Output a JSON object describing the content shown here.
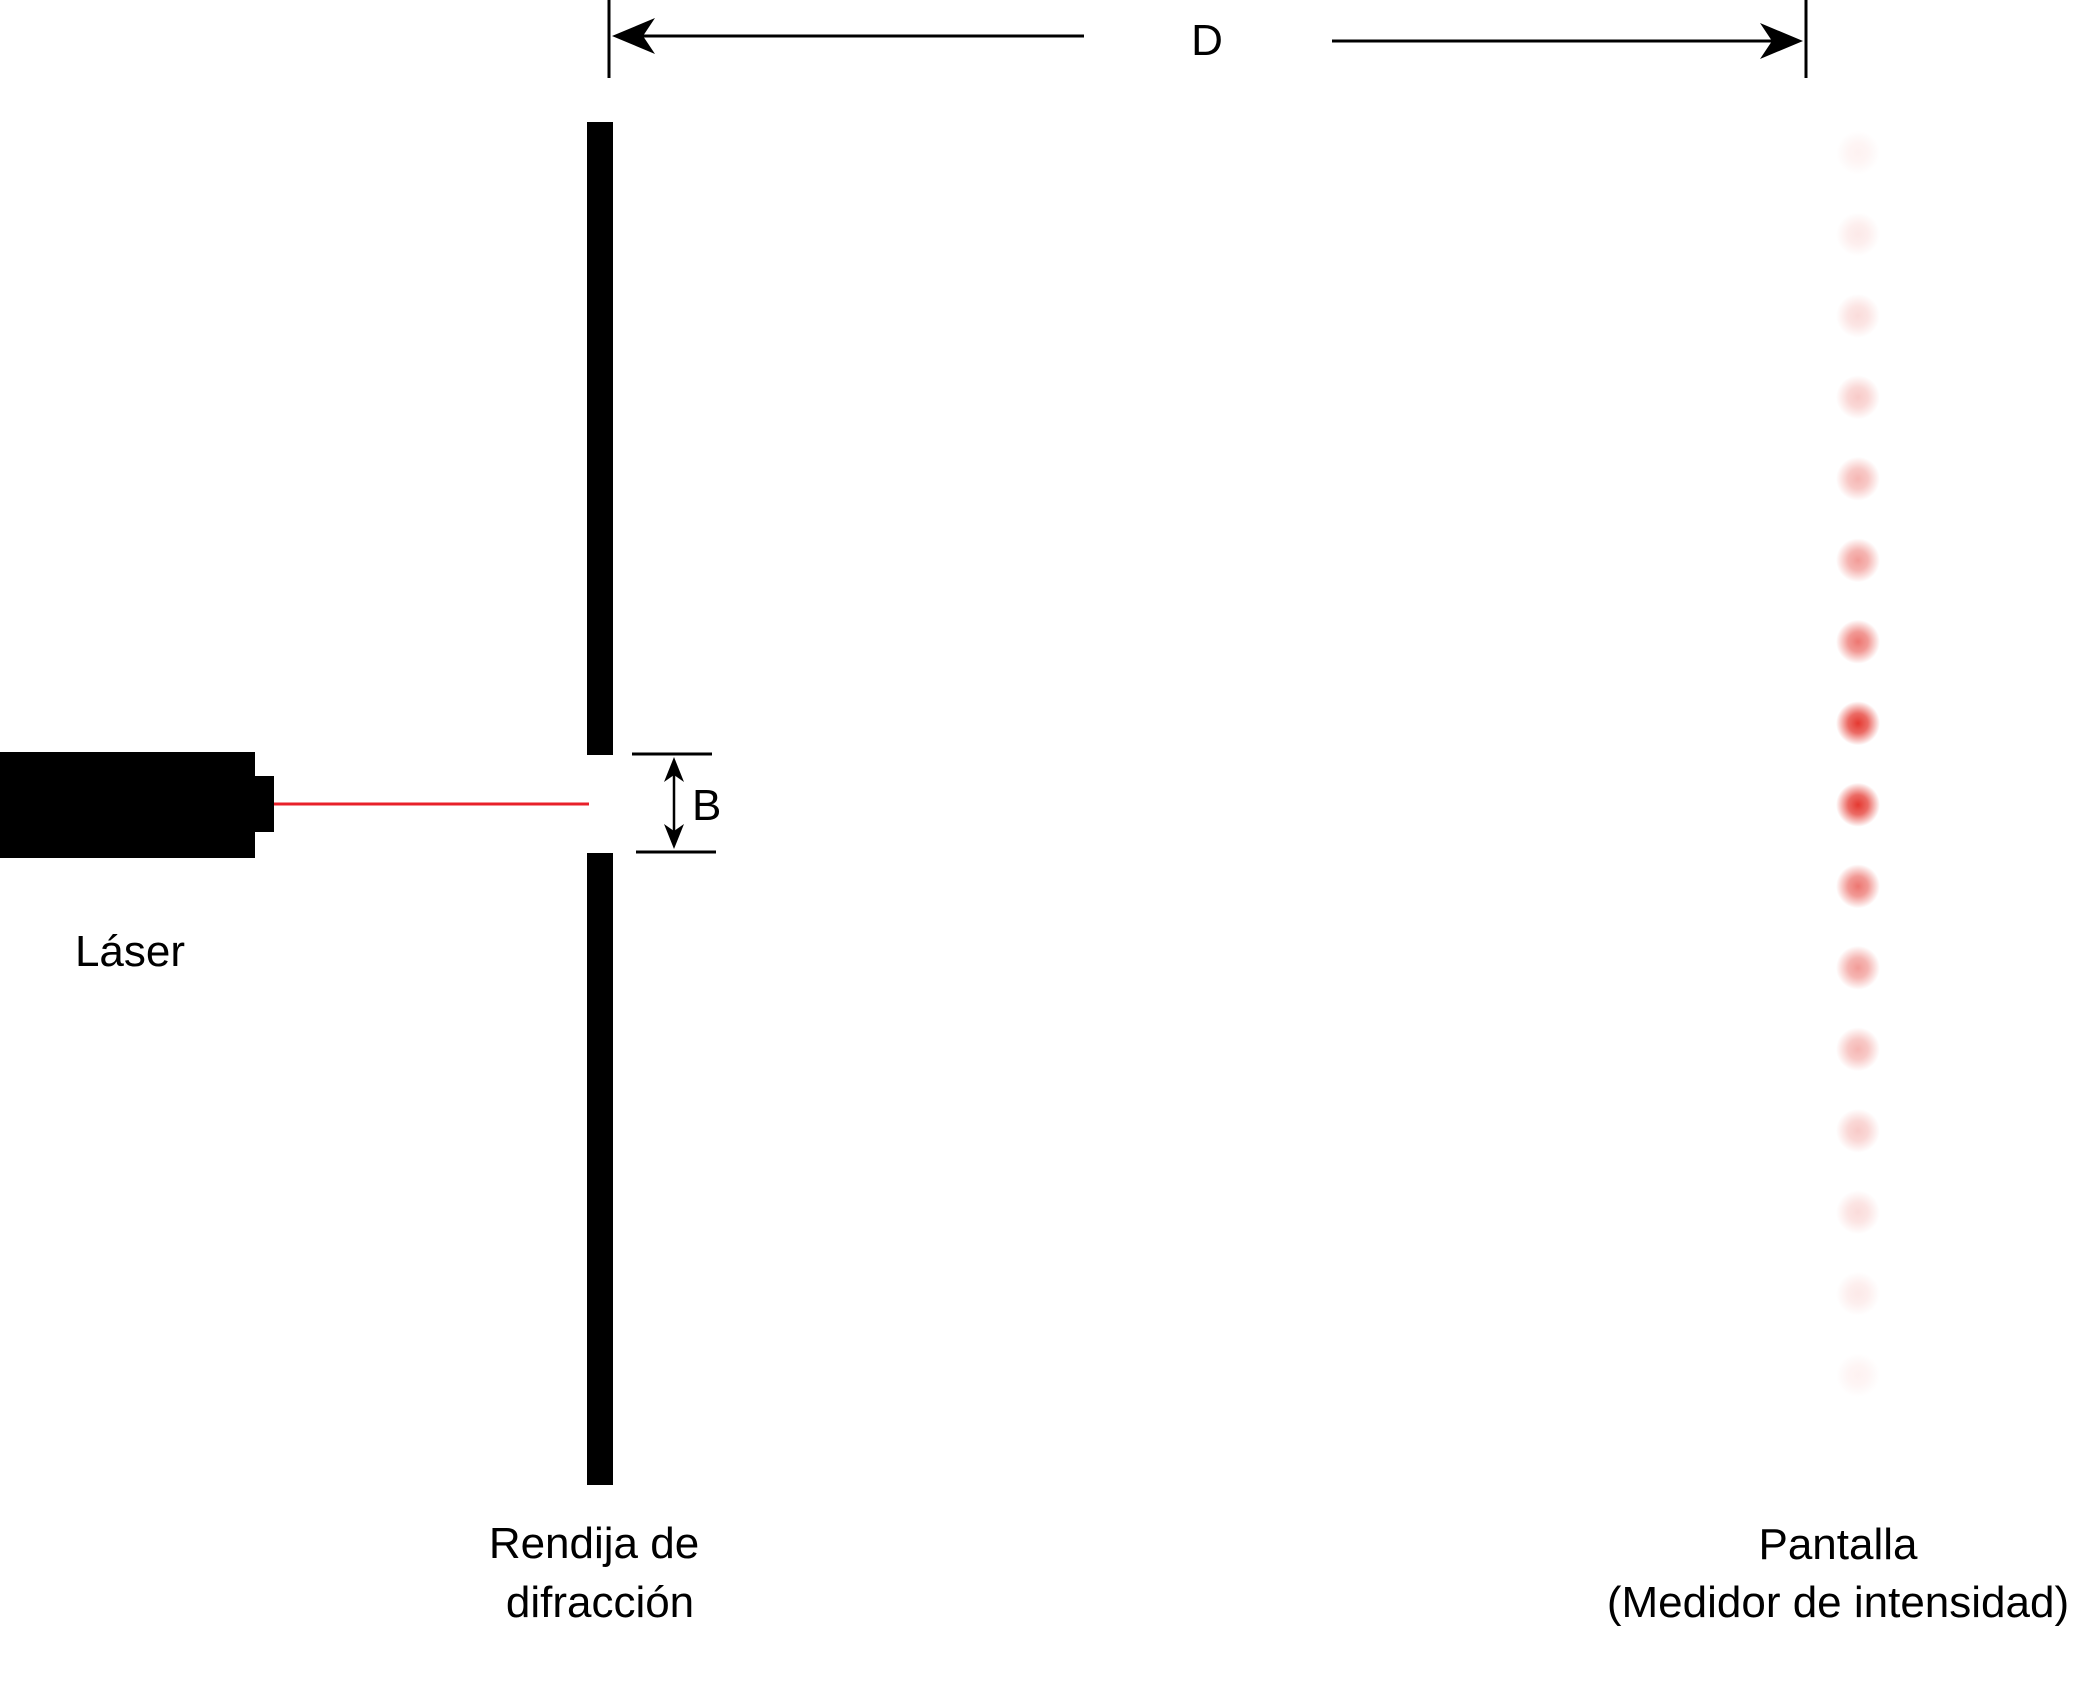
{
  "labels": {
    "distance": "D",
    "slit_width": "B",
    "laser": "Láser",
    "slit_line1": "Rendija de",
    "slit_line2": "difracción",
    "screen_line1": "Pantalla",
    "screen_line2": "(Medidor de intensidad)"
  },
  "colors": {
    "ink": "#000000",
    "beam": "#e8202a",
    "spot": "#e2231a"
  },
  "pattern": {
    "intensities": [
      0.06,
      0.1,
      0.16,
      0.24,
      0.33,
      0.45,
      0.62,
      0.9,
      0.9,
      0.62,
      0.45,
      0.33,
      0.24,
      0.16,
      0.1,
      0.06
    ]
  }
}
